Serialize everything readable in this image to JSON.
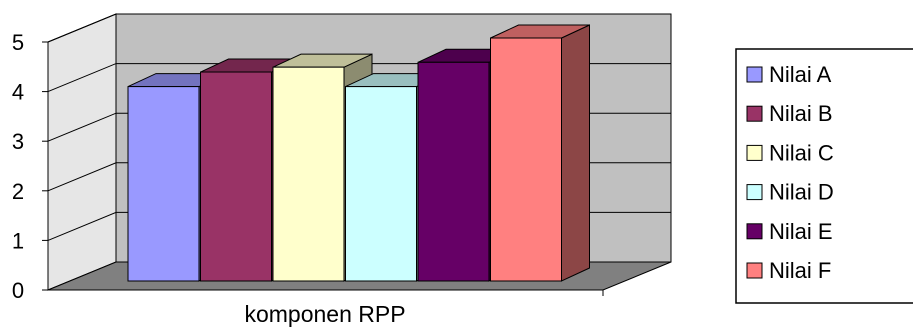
{
  "chart_data": {
    "type": "bar",
    "style": "3d-column",
    "categories": [
      "komponen RPP"
    ],
    "xlabel": "komponen RPP",
    "ylabel": "",
    "ylim": [
      0,
      5
    ],
    "yticks": [
      "0",
      "1",
      "2",
      "3",
      "4",
      "5"
    ],
    "grid": true,
    "legend_position": "right",
    "series": [
      {
        "name": "Nilai A",
        "values": [
          4.0
        ],
        "color": "#9999FF"
      },
      {
        "name": "Nilai B",
        "values": [
          4.3
        ],
        "color": "#993366"
      },
      {
        "name": "Nilai C",
        "values": [
          4.4
        ],
        "color": "#FFFFCC"
      },
      {
        "name": "Nilai D",
        "values": [
          4.0
        ],
        "color": "#CCFFFF"
      },
      {
        "name": "Nilai E",
        "values": [
          4.5
        ],
        "color": "#660066"
      },
      {
        "name": "Nilai F",
        "values": [
          5.0
        ],
        "color": "#FF8080"
      }
    ],
    "colors": {
      "back_wall": "#C0C0C0",
      "side_wall": "#E6E6E6",
      "floor": "#808080"
    }
  }
}
